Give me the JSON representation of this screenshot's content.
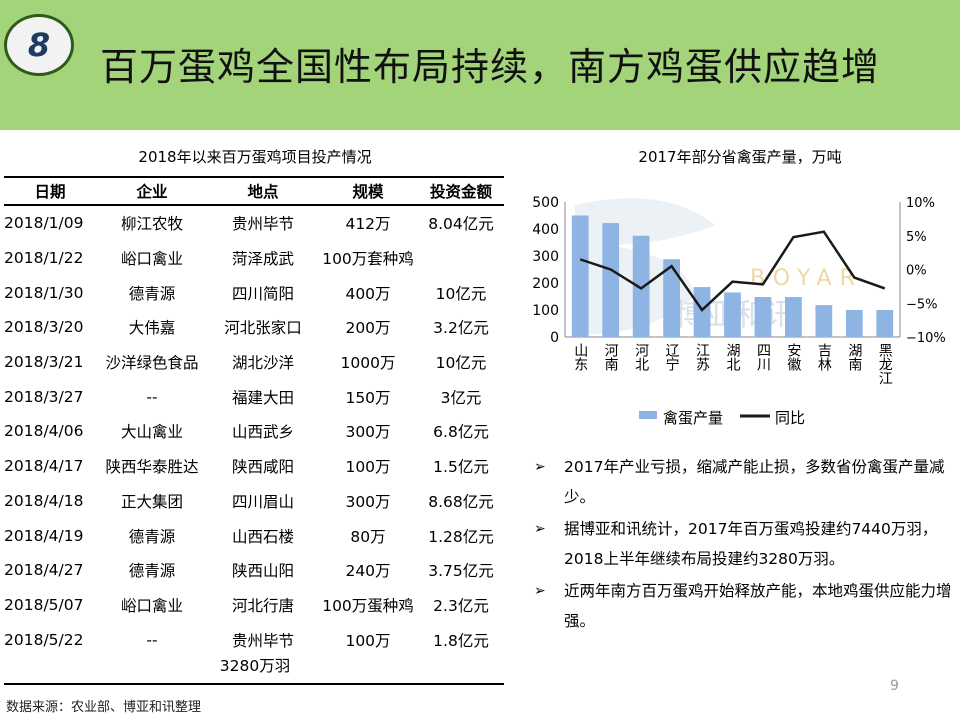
{
  "header": {
    "badge": "8",
    "title": "百万蛋鸡全国性布局持续，南方鸡蛋供应趋增"
  },
  "table": {
    "caption": "2018年以来百万蛋鸡项目投产情况",
    "columns": [
      "日期",
      "企业",
      "地点",
      "规模",
      "投资金额"
    ],
    "rows": [
      [
        "2018/1/09",
        "柳江农牧",
        "贵州毕节",
        "412万",
        "8.04亿元"
      ],
      [
        "2018/1/22",
        "峪口禽业",
        "菏泽成武",
        "100万套种鸡",
        ""
      ],
      [
        "2018/1/30",
        "德青源",
        "四川简阳",
        "400万",
        "10亿元"
      ],
      [
        "2018/3/20",
        "大伟嘉",
        "河北张家口",
        "200万",
        "3.2亿元"
      ],
      [
        "2018/3/21",
        "沙洋绿色食品",
        "湖北沙洋",
        "1000万",
        "10亿元"
      ],
      [
        "2018/3/27",
        "--",
        "福建大田",
        "150万",
        "3亿元"
      ],
      [
        "2018/4/06",
        "大山禽业",
        "山西武乡",
        "300万",
        "6.8亿元"
      ],
      [
        "2018/4/17",
        "陕西华泰胜达",
        "陕西咸阳",
        "100万",
        "1.5亿元"
      ],
      [
        "2018/4/18",
        "正大集团",
        "四川眉山",
        "300万",
        "8.68亿元"
      ],
      [
        "2018/4/19",
        "德青源",
        "山西石楼",
        "80万",
        "1.28亿元"
      ],
      [
        "2018/4/27",
        "德青源",
        "陕西山阳",
        "240万",
        "3.75亿元"
      ],
      [
        "2018/5/07",
        "峪口禽业",
        "河北行唐",
        "100万蛋种鸡",
        "2.3亿元"
      ],
      [
        "2018/5/22",
        "--",
        "贵州毕节",
        "100万",
        "1.8亿元"
      ]
    ],
    "total": "3280万羽"
  },
  "source": "数据来源：农业部、博亚和讯整理",
  "page_number": "9",
  "chart_data": {
    "type": "bar",
    "title": "2017年部分省禽蛋产量，万吨",
    "categories": [
      "山东",
      "河南",
      "河北",
      "辽宁",
      "江苏",
      "湖北",
      "四川",
      "安徽",
      "吉林",
      "湖南",
      "黑龙江"
    ],
    "series": [
      {
        "name": "禽蛋产量",
        "type": "bar",
        "axis": "left",
        "color": "#8eb4e3",
        "values": [
          450,
          422,
          375,
          288,
          185,
          165,
          148,
          148,
          118,
          100,
          100
        ]
      },
      {
        "name": "同比",
        "type": "line",
        "axis": "right",
        "color": "#1a1a1a",
        "values": [
          1.5,
          0.0,
          -2.8,
          0.5,
          -6.0,
          -1.8,
          -2.2,
          4.8,
          5.6,
          -1.2,
          -2.8
        ]
      }
    ],
    "ylim_left": [
      0,
      500
    ],
    "yticks_left": [
      "0",
      "100",
      "200",
      "300",
      "400",
      "500"
    ],
    "ylim_right": [
      -10,
      10
    ],
    "yticks_right": [
      "−10%",
      "−5%",
      "0%",
      "5%",
      "10%"
    ],
    "legend_position": "bottom",
    "grid": false
  },
  "bullets": [
    "2017年产业亏损，缩减产能止损，多数省份禽蛋产量减少。",
    "据博亚和讯统计，2017年百万蛋鸡投建约7440万羽，2018上半年继续布局投建约3280万羽。",
    "近两年南方百万蛋鸡开始释放产能，本地鸡蛋供应能力增强。"
  ],
  "watermark": "BOYAR 博亚和讯"
}
